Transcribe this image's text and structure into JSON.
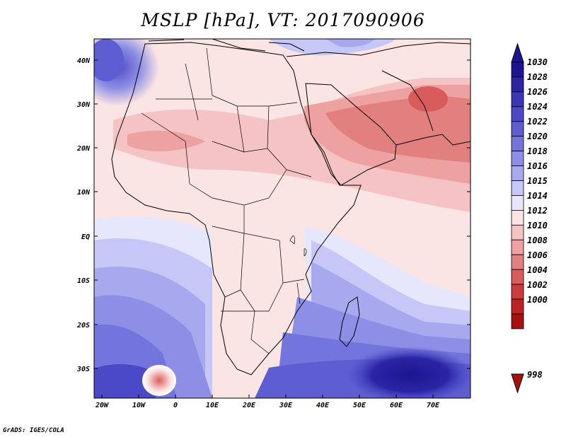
{
  "figure": {
    "title": "MSLP [hPa], VT: 2017090906",
    "credit": "GrADS: IGES/COLA"
  },
  "axes": {
    "lat_labels": [
      "40N",
      "30N",
      "20N",
      "10N",
      "EQ",
      "10S",
      "20S",
      "30S"
    ],
    "lat_values": [
      40,
      30,
      20,
      10,
      0,
      -10,
      -20,
      -30
    ],
    "lon_labels": [
      "20W",
      "10W",
      "0",
      "10E",
      "20E",
      "30E",
      "40E",
      "50E",
      "60E",
      "70E"
    ],
    "lon_values": [
      -20,
      -10,
      0,
      10,
      20,
      30,
      40,
      50,
      60,
      70
    ],
    "lon_range": [
      -22,
      80
    ],
    "lat_range": [
      -37,
      45
    ]
  },
  "colorbar": {
    "labels": [
      "1030",
      "1028",
      "1026",
      "1024",
      "1022",
      "1020",
      "1018",
      "1016",
      "1015",
      "1014",
      "1012",
      "1010",
      "1008",
      "1006",
      "1004",
      "1002",
      "1000",
      "998"
    ],
    "colors": [
      "#1d1590",
      "#2b25a6",
      "#3a37b8",
      "#4b49c6",
      "#5e5dd2",
      "#7475dc",
      "#8d8ee5",
      "#a7a8ee",
      "#c6c7f6",
      "#e6e7fc",
      "#fbe4e4",
      "#f5c3c3",
      "#eda1a1",
      "#e28080",
      "#d95c5c",
      "#cd3c3c",
      "#bd2323",
      "#a81010"
    ]
  },
  "colors": {
    "high_max": "#1d1590",
    "low_max": "#a81010",
    "neutral": "#ffffff"
  }
}
